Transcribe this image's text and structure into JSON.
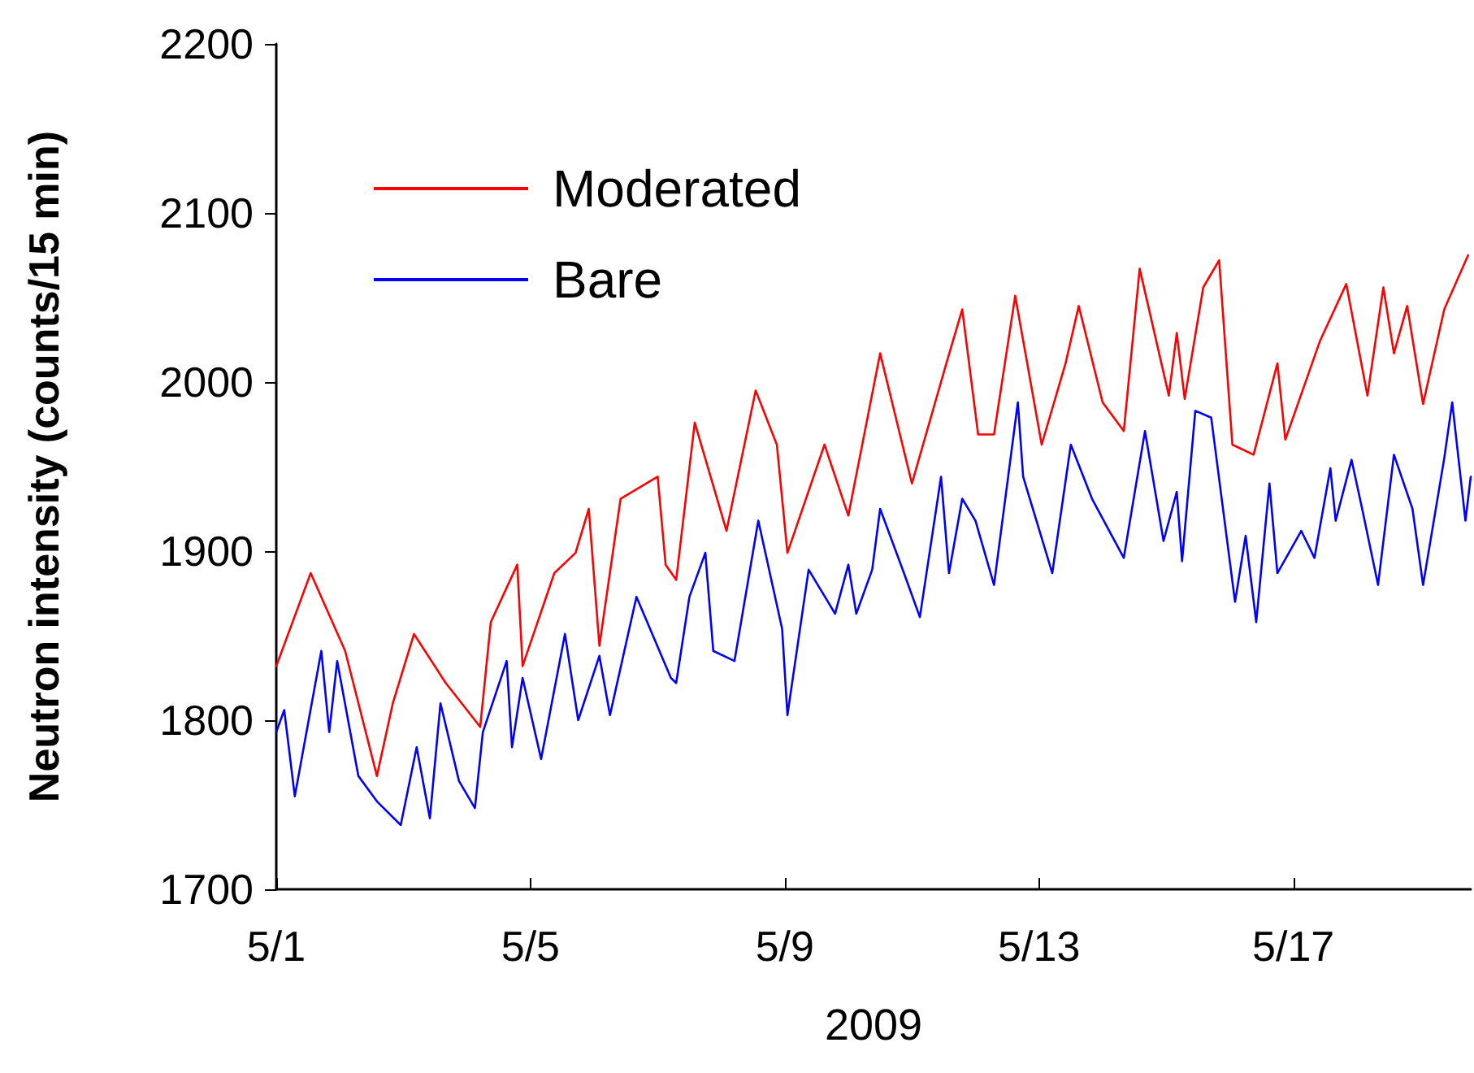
{
  "chart_data": {
    "type": "line",
    "xlabel": "2009",
    "ylabel": "Neutron intensity (counts/15 min)",
    "xlim": [
      "2009-05-01T00:00",
      "2009-05-19T19:00"
    ],
    "ylim": [
      1700,
      2200
    ],
    "xticks": [
      {
        "value": "2009-05-01",
        "label": "5/1"
      },
      {
        "value": "2009-05-05",
        "label": "5/5"
      },
      {
        "value": "2009-05-09",
        "label": "5/9"
      },
      {
        "value": "2009-05-13",
        "label": "5/13"
      },
      {
        "value": "2009-05-17",
        "label": "5/17"
      }
    ],
    "yticks": [
      1700,
      1800,
      1900,
      2000,
      2100,
      2200
    ],
    "grid": false,
    "legend": "top left",
    "marker": "none",
    "line_style": "solid",
    "series": [
      {
        "name": "Moderated",
        "color": "#ff0000",
        "x": [
          "2009-05-01T00:00",
          "2009-05-01T13:00",
          "2009-05-02T02:00",
          "2009-05-02T14:00",
          "2009-05-02T20:00",
          "2009-05-03T04:00",
          "2009-05-03T16:00",
          "2009-05-04T05:00",
          "2009-05-04T09:00",
          "2009-05-04T19:00",
          "2009-05-04T21:00",
          "2009-05-05T09:00",
          "2009-05-05T17:00",
          "2009-05-05T22:00",
          "2009-05-06T02:00",
          "2009-05-06T10:00",
          "2009-05-07T00:00",
          "2009-05-07T03:00",
          "2009-05-07T07:00",
          "2009-05-07T14:00",
          "2009-05-08T02:00",
          "2009-05-08T13:00",
          "2009-05-08T21:00",
          "2009-05-09T01:00",
          "2009-05-09T15:00",
          "2009-05-10T00:00",
          "2009-05-10T12:00",
          "2009-05-11T00:00",
          "2009-05-11T13:00",
          "2009-05-11T19:00",
          "2009-05-12T01:00",
          "2009-05-12T07:00",
          "2009-05-12T15:00",
          "2009-05-13T01:00",
          "2009-05-13T10:00",
          "2009-05-13T15:00",
          "2009-05-14T00:00",
          "2009-05-14T08:00",
          "2009-05-14T14:00",
          "2009-05-15T01:00",
          "2009-05-15T04:00",
          "2009-05-15T07:00",
          "2009-05-15T14:00",
          "2009-05-15T20:00",
          "2009-05-16T01:00",
          "2009-05-16T09:00",
          "2009-05-16T18:00",
          "2009-05-16T21:00",
          "2009-05-17T10:00",
          "2009-05-17T20:00",
          "2009-05-18T04:00",
          "2009-05-18T10:00",
          "2009-05-18T14:00",
          "2009-05-18T19:00",
          "2009-05-19T01:00",
          "2009-05-19T09:00",
          "2009-05-19T18:00"
        ],
        "values": [
          1832,
          1887,
          1841,
          1767,
          1810,
          1851,
          1822,
          1796,
          1858,
          1892,
          1832,
          1887,
          1899,
          1925,
          1844,
          1931,
          1944,
          1892,
          1883,
          1976,
          1912,
          1995,
          1963,
          1899,
          1963,
          1921,
          2017,
          1940,
          2011,
          2043,
          1969,
          1969,
          2051,
          1963,
          2011,
          2045,
          1988,
          1971,
          2067,
          1992,
          2029,
          1990,
          2056,
          2072,
          1963,
          1957,
          2011,
          1966,
          2024,
          2058,
          1992,
          2056,
          2017,
          2045,
          1987,
          2043,
          2075
        ]
      },
      {
        "name": "Bare",
        "color": "#0000ff",
        "x": [
          "2009-05-01T00:00",
          "2009-05-01T03:00",
          "2009-05-01T07:00",
          "2009-05-01T17:00",
          "2009-05-01T20:00",
          "2009-05-01T23:00",
          "2009-05-02T07:00",
          "2009-05-02T14:00",
          "2009-05-02T23:00",
          "2009-05-03T05:00",
          "2009-05-03T10:00",
          "2009-05-03T14:00",
          "2009-05-03T21:00",
          "2009-05-04T03:00",
          "2009-05-04T06:00",
          "2009-05-04T15:00",
          "2009-05-04T17:00",
          "2009-05-04T21:00",
          "2009-05-05T04:00",
          "2009-05-05T13:00",
          "2009-05-05T18:00",
          "2009-05-06T02:00",
          "2009-05-06T06:00",
          "2009-05-06T16:00",
          "2009-05-07T05:00",
          "2009-05-07T07:00",
          "2009-05-07T12:00",
          "2009-05-07T18:00",
          "2009-05-07T21:00",
          "2009-05-08T05:00",
          "2009-05-08T14:00",
          "2009-05-08T23:00",
          "2009-05-09T01:00",
          "2009-05-09T09:00",
          "2009-05-09T19:00",
          "2009-05-10T00:00",
          "2009-05-10T03:00",
          "2009-05-10T09:00",
          "2009-05-10T12:00",
          "2009-05-10T21:00",
          "2009-05-11T03:00",
          "2009-05-11T11:00",
          "2009-05-11T14:00",
          "2009-05-11T19:00",
          "2009-05-12T00:00",
          "2009-05-12T07:00",
          "2009-05-12T16:00",
          "2009-05-12T18:00",
          "2009-05-13T05:00",
          "2009-05-13T12:00",
          "2009-05-13T20:00",
          "2009-05-14T08:00",
          "2009-05-14T16:00",
          "2009-05-14T23:00",
          "2009-05-15T04:00",
          "2009-05-15T06:00",
          "2009-05-15T11:00",
          "2009-05-15T17:00",
          "2009-05-16T02:00",
          "2009-05-16T06:00",
          "2009-05-16T10:00",
          "2009-05-16T15:00",
          "2009-05-16T18:00",
          "2009-05-17T03:00",
          "2009-05-17T08:00",
          "2009-05-17T14:00",
          "2009-05-17T16:00",
          "2009-05-17T22:00",
          "2009-05-18T02:00",
          "2009-05-18T08:00",
          "2009-05-18T14:00",
          "2009-05-18T21:00",
          "2009-05-19T01:00",
          "2009-05-19T09:00",
          "2009-05-19T12:00",
          "2009-05-19T17:00",
          "2009-05-19T19:00"
        ],
        "values": [
          1793,
          1806,
          1755,
          1841,
          1793,
          1835,
          1767,
          1752,
          1738,
          1784,
          1742,
          1810,
          1764,
          1748,
          1793,
          1835,
          1784,
          1825,
          1777,
          1851,
          1800,
          1838,
          1803,
          1873,
          1825,
          1822,
          1873,
          1899,
          1841,
          1835,
          1918,
          1854,
          1803,
          1889,
          1863,
          1892,
          1863,
          1889,
          1925,
          1887,
          1861,
          1944,
          1887,
          1931,
          1918,
          1880,
          1988,
          1944,
          1887,
          1963,
          1931,
          1896,
          1971,
          1906,
          1935,
          1894,
          1983,
          1979,
          1870,
          1909,
          1858,
          1940,
          1887,
          1912,
          1896,
          1949,
          1918,
          1954,
          1925,
          1880,
          1957,
          1925,
          1880,
          1955,
          1988,
          1918,
          1944
        ]
      }
    ]
  }
}
